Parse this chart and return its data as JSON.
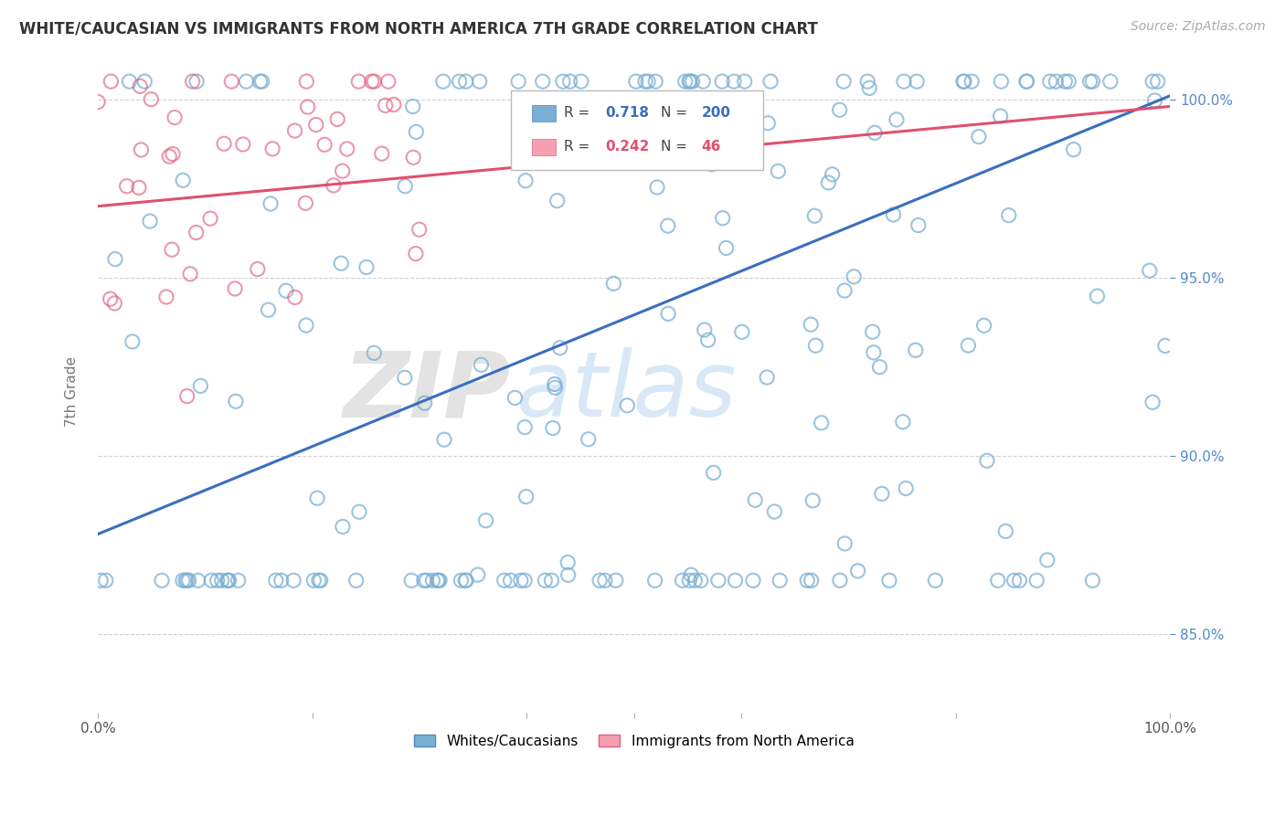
{
  "title": "WHITE/CAUCASIAN VS IMMIGRANTS FROM NORTH AMERICA 7TH GRADE CORRELATION CHART",
  "source": "Source: ZipAtlas.com",
  "ylabel": "7th Grade",
  "xmin": 0.0,
  "xmax": 1.0,
  "ymin": 0.828,
  "ymax": 1.008,
  "yticks": [
    0.85,
    0.9,
    0.95,
    1.0
  ],
  "ytick_labels": [
    "85.0%",
    "90.0%",
    "95.0%",
    "100.0%"
  ],
  "blue_R": 0.718,
  "blue_N": 200,
  "pink_R": 0.242,
  "pink_N": 46,
  "blue_color": "#7BAFD4",
  "pink_color": "#F4A0B0",
  "blue_edge_color": "#5588BB",
  "pink_edge_color": "#E06080",
  "blue_line_color": "#3B6EBF",
  "pink_line_color": "#E05070",
  "blue_tick_color": "#5588CC",
  "watermark_zip": "ZIP",
  "watermark_atlas": "atlas",
  "legend_blue": "Whites/Caucasians",
  "legend_pink": "Immigrants from North America",
  "background_color": "#FFFFFF",
  "grid_color": "#CCCCCC",
  "blue_line_start_y": 0.878,
  "blue_line_end_y": 1.001,
  "pink_line_start_y": 0.97,
  "pink_line_end_y": 0.998
}
